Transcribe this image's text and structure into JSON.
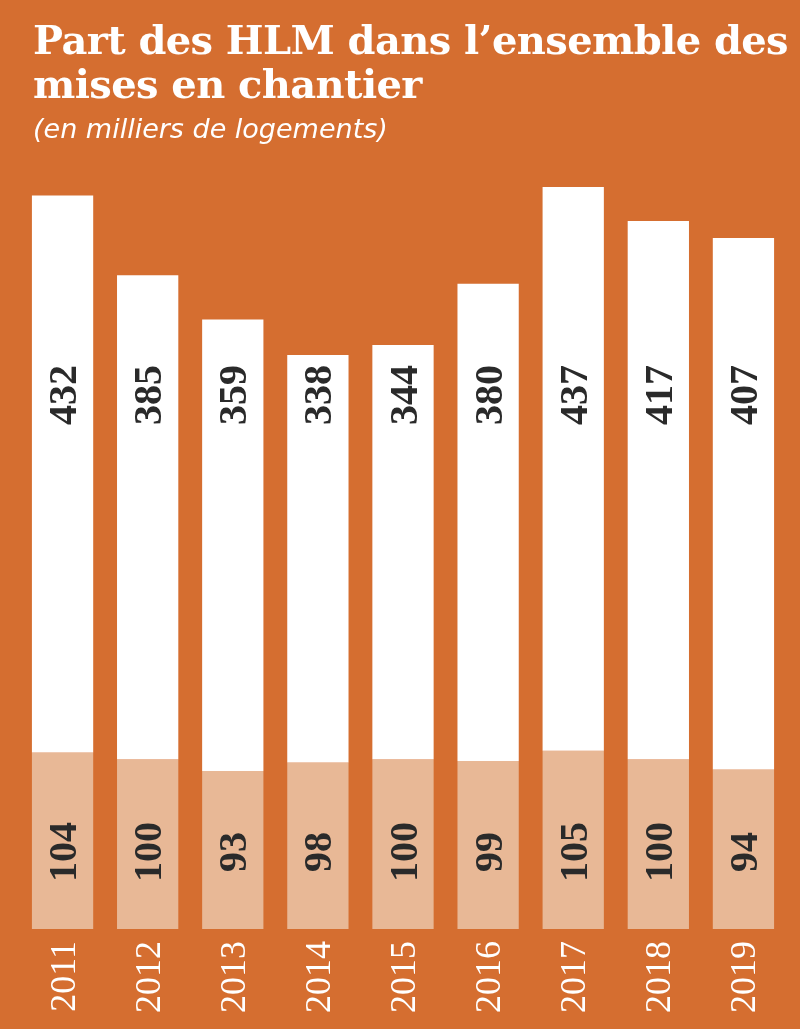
{
  "chart_data": {
    "type": "bar",
    "stacked": true,
    "title": "Part des HLM dans l’ensemble des mises en chantier",
    "subtitle": "(en milliers de logements)",
    "tick_labels": "x",
    "categories": [
      "2011",
      "2012",
      "2013",
      "2014",
      "2015",
      "2016",
      "2017",
      "2018",
      "2019"
    ],
    "series": [
      {
        "color": "#e8b896",
        "values": [
          104,
          100,
          93,
          98,
          100,
          99,
          105,
          100,
          94
        ],
        "value_labels": [
          "104",
          "100",
          "93",
          "98",
          "100",
          "99",
          "105",
          "100",
          "94"
        ]
      },
      {
        "color": "#ffffff",
        "values": [
          328,
          285,
          266,
          240,
          244,
          281,
          332,
          317,
          313
        ]
      }
    ],
    "totals": [
      "432",
      "385",
      "359",
      "338",
      "344",
      "380",
      "437",
      "417",
      "407"
    ]
  }
}
